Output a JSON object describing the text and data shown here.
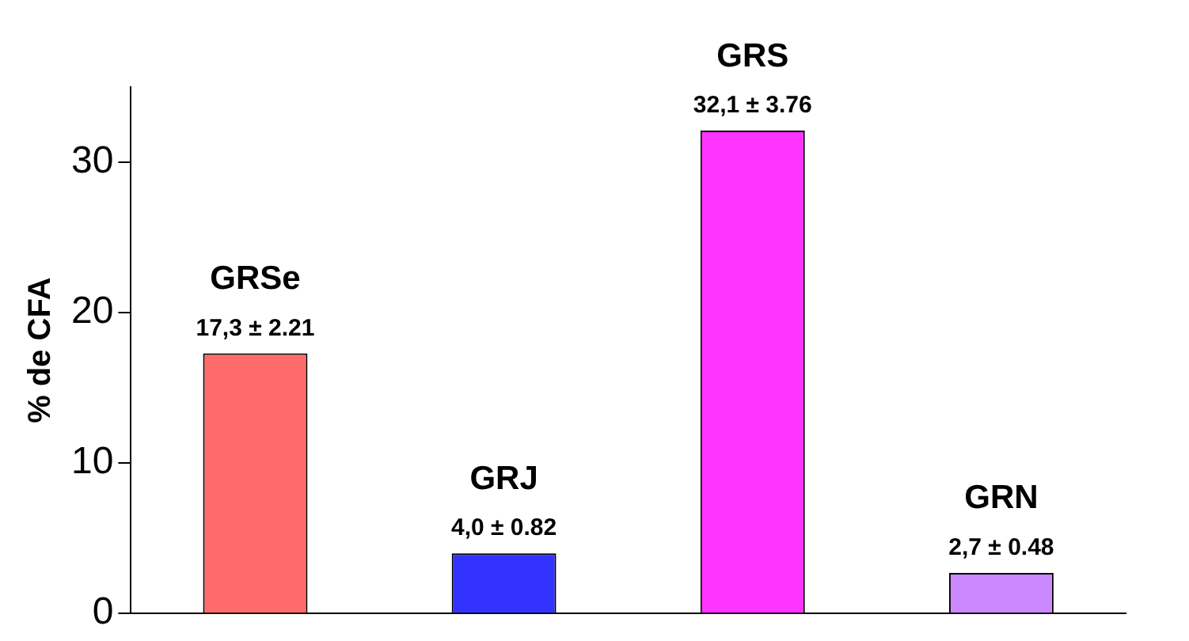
{
  "chart_data": {
    "type": "bar",
    "ylabel": "% de CFA",
    "categories": [
      "GRSe",
      "GRJ",
      "GRS",
      "GRN"
    ],
    "values": [
      17.3,
      4.0,
      32.1,
      2.7
    ],
    "colors": [
      "#ff6b6b",
      "#3333ff",
      "#ff33ff",
      "#cc88ff"
    ],
    "value_labels": [
      "17,3 ± 2.21",
      "4,0 ± 0.82",
      "32,1 ± 3.76",
      "2,7 ± 0.48"
    ],
    "ylim": [
      0,
      35
    ],
    "yticks": [
      0,
      10,
      20,
      30
    ],
    "grid": false,
    "legend": false,
    "tick_labels": "y"
  }
}
